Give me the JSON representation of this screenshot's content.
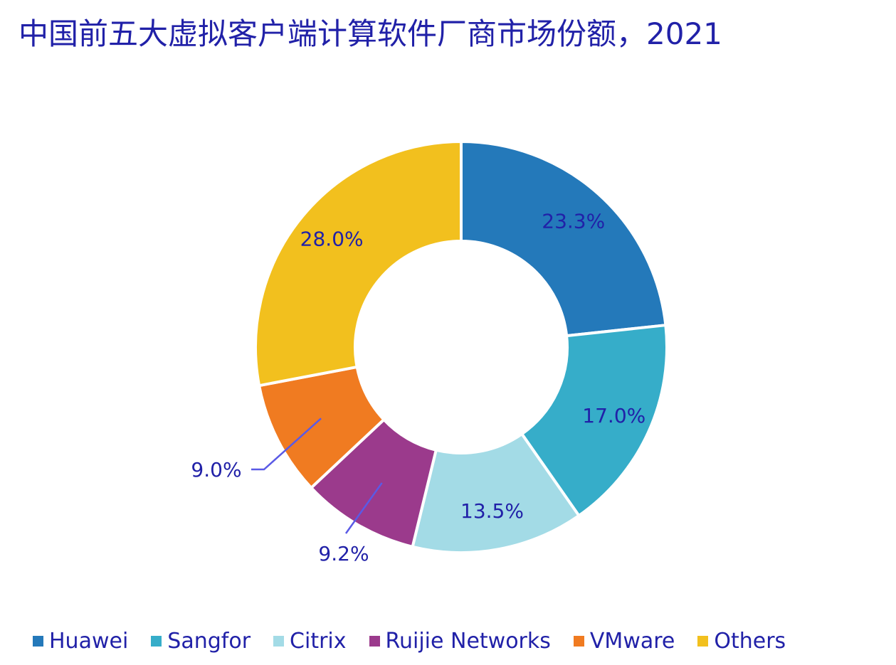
{
  "colors": {
    "text": "#2121a8",
    "leader": "#5a5ae6"
  },
  "chart_data": {
    "type": "pie",
    "variant": "donut",
    "title": "中国前五大虚拟客户端计算软件厂商市场份额，2021",
    "unit": "%",
    "legend_position": "bottom",
    "slices": [
      {
        "label": "Huawei",
        "value": 23.3,
        "display": "23.3%",
        "color": "#2479ba"
      },
      {
        "label": "Sangfor",
        "value": 17.0,
        "display": "17.0%",
        "color": "#36adc9"
      },
      {
        "label": "Citrix",
        "value": 13.5,
        "display": "13.5%",
        "color": "#a3dbe6"
      },
      {
        "label": "Ruijie Networks",
        "value": 9.2,
        "display": "9.2%",
        "color": "#9b3a8c"
      },
      {
        "label": "VMware",
        "value": 9.0,
        "display": "9.0%",
        "color": "#f07b21"
      },
      {
        "label": "Others",
        "value": 28.0,
        "display": "28.0%",
        "color": "#f2c01e"
      }
    ]
  }
}
